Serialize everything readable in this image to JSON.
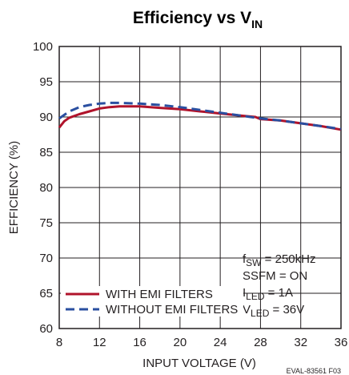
{
  "chart_data": {
    "type": "line",
    "title": "Efficiency vs V",
    "title_sub": "IN",
    "xlabel": "INPUT VOLTAGE (V)",
    "ylabel": "EFFICIENCY (%)",
    "xlim": [
      8,
      36
    ],
    "ylim": [
      60,
      100
    ],
    "xticks": [
      8,
      12,
      16,
      20,
      24,
      28,
      32,
      36
    ],
    "yticks": [
      60,
      65,
      70,
      75,
      80,
      85,
      90,
      95,
      100
    ],
    "grid": true,
    "legend_position": "bottom-left",
    "series": [
      {
        "name": "WITH EMI FILTERS",
        "color": "#b0132b",
        "style": "solid",
        "x": [
          8,
          8.5,
          9,
          10,
          11,
          12,
          13,
          14,
          16,
          18,
          20,
          22,
          24,
          26,
          27.5,
          28,
          30,
          32,
          34,
          36
        ],
        "y": [
          88.5,
          89.4,
          89.9,
          90.4,
          90.8,
          91.2,
          91.4,
          91.5,
          91.5,
          91.3,
          91.1,
          90.8,
          90.5,
          90.2,
          90.0,
          89.7,
          89.5,
          89.1,
          88.7,
          88.2
        ]
      },
      {
        "name": "WITHOUT EMI FILTERS",
        "color": "#2a4fa0",
        "style": "dashed",
        "x": [
          8,
          8.5,
          9,
          10,
          11,
          12,
          13,
          14,
          16,
          18,
          20,
          22,
          24,
          26,
          28,
          30,
          32,
          34,
          36
        ],
        "y": [
          89.8,
          90.3,
          90.8,
          91.4,
          91.7,
          91.9,
          92.0,
          92.0,
          91.9,
          91.7,
          91.4,
          91.0,
          90.6,
          90.2,
          89.8,
          89.5,
          89.1,
          88.7,
          88.3
        ]
      }
    ],
    "annotations": [
      {
        "main": "f",
        "sub": "SW",
        "rest": " = 250kHz"
      },
      {
        "main": "SSFM = ON",
        "sub": "",
        "rest": ""
      },
      {
        "main": "I",
        "sub": "LED",
        "rest": " = 1A"
      },
      {
        "main": "V",
        "sub": "LED",
        "rest": " = 36V"
      }
    ],
    "footer_code": "EVAL-83561 F03"
  }
}
